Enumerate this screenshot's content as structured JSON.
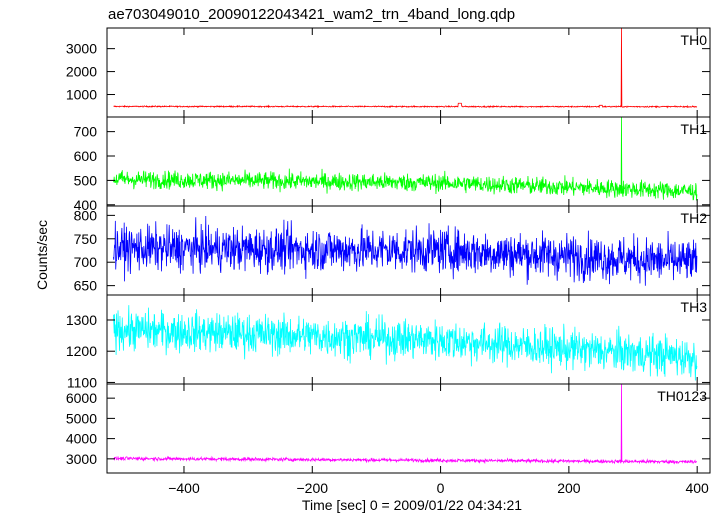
{
  "chart_data": {
    "type": "line",
    "title": "ae703049010_20090122043421_wam2_trn_4band_long.qdp",
    "xlabel": "Time [sec] 0 = 2009/01/22 04:34:21",
    "ylabel": "Counts/sec",
    "xlim": [
      -520,
      420
    ],
    "x_ticks": [
      -400,
      -200,
      0,
      200,
      400
    ],
    "x_tick_labels": [
      "−400",
      "−200",
      "0",
      "200",
      "400"
    ],
    "x_data_range": [
      -510,
      400
    ],
    "spike_time": 282,
    "grid": false,
    "legend": "none",
    "panels": [
      {
        "name": "TH0",
        "color": "#ff0000",
        "ylim": [
          20,
          3900
        ],
        "yticks": [
          1000,
          2000,
          3000
        ],
        "trend": [
          [
            -510,
            480
          ],
          [
            400,
            470
          ]
        ],
        "noise": 25,
        "spike": 3900,
        "bumps": [
          [
            30,
            620
          ],
          [
            250,
            530
          ]
        ]
      },
      {
        "name": "TH1",
        "color": "#00ff00",
        "ylim": [
          395,
          760
        ],
        "yticks": [
          400,
          500,
          600,
          700
        ],
        "trend": [
          [
            -510,
            505
          ],
          [
            0,
            490
          ],
          [
            400,
            455
          ]
        ],
        "noise": 35,
        "spike": 760,
        "bumps": []
      },
      {
        "name": "TH2",
        "color": "#0000ff",
        "ylim": [
          630,
          820
        ],
        "yticks": [
          650,
          700,
          750,
          800
        ],
        "trend": [
          [
            -510,
            730
          ],
          [
            0,
            725
          ],
          [
            400,
            700
          ]
        ],
        "noise": 45,
        "spike": null,
        "bumps": []
      },
      {
        "name": "TH3",
        "color": "#00ffff",
        "ylim": [
          1095,
          1380
        ],
        "yticks": [
          1100,
          1200,
          1300
        ],
        "trend": [
          [
            -510,
            1270
          ],
          [
            0,
            1235
          ],
          [
            400,
            1180
          ]
        ],
        "noise": 60,
        "spike": null,
        "bumps": []
      },
      {
        "name": "TH0123",
        "color": "#ff00ff",
        "ylim": [
          2300,
          6700
        ],
        "yticks": [
          3000,
          4000,
          5000,
          6000
        ],
        "trend": [
          [
            -510,
            3020
          ],
          [
            400,
            2850
          ]
        ],
        "noise": 80,
        "spike": 6700,
        "bumps": []
      }
    ]
  }
}
